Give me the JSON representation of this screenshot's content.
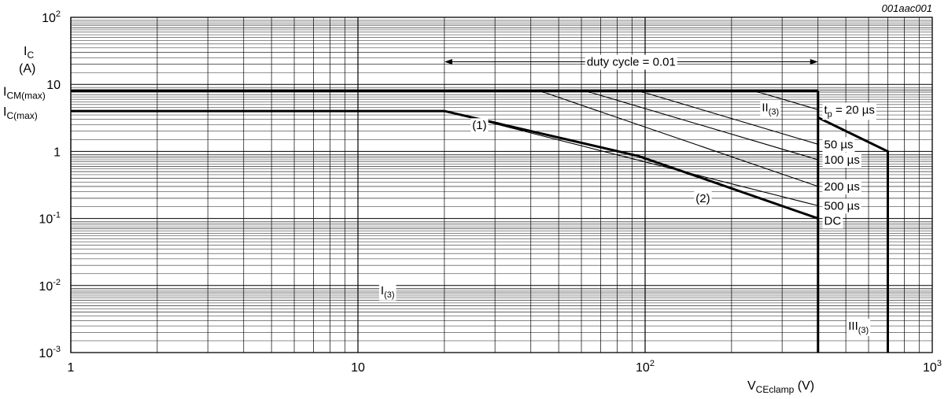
{
  "chart_data": {
    "type": "line",
    "figure_id": "001aac001",
    "x_scale": "log",
    "y_scale": "log",
    "xlim": [
      1,
      1000
    ],
    "ylim": [
      0.001,
      100
    ],
    "grid": true,
    "x_label": {
      "main": "V",
      "sub": "CEclamp",
      "unit": " (V)"
    },
    "y_label": {
      "main": "I",
      "sub": "C",
      "unit": "(A)"
    },
    "x_ticks": [
      {
        "value": 1,
        "base": "1",
        "exp": ""
      },
      {
        "value": 10,
        "base": "10",
        "exp": ""
      },
      {
        "value": 100,
        "base": "10",
        "exp": "2"
      },
      {
        "value": 1000,
        "base": "10",
        "exp": "3"
      }
    ],
    "y_ticks": [
      {
        "value": 100,
        "base": "10",
        "exp": "2"
      },
      {
        "value": 10,
        "base": "10",
        "exp": ""
      },
      {
        "value": 1,
        "base": "1",
        "exp": ""
      },
      {
        "value": 0.1,
        "base": "10",
        "exp": "-1"
      },
      {
        "value": 0.01,
        "base": "10",
        "exp": "-2"
      },
      {
        "value": 0.001,
        "base": "10",
        "exp": "-3"
      }
    ],
    "level_labels": [
      {
        "value": 8.0,
        "main": "I",
        "sub": "CM(max)"
      },
      {
        "value": 4.0,
        "main": "I",
        "sub": "C(max)"
      }
    ],
    "series": [
      {
        "kind": "boundary",
        "points": [
          [
            1,
            8.0
          ],
          [
            400,
            8.0
          ]
        ]
      },
      {
        "kind": "boundary",
        "points": [
          [
            1,
            4.0
          ],
          [
            20,
            4.0
          ],
          [
            95,
            0.85
          ],
          [
            400,
            0.1
          ]
        ]
      },
      {
        "kind": "boundary",
        "points": [
          [
            400,
            8.0
          ],
          [
            400,
            0.001
          ]
        ]
      },
      {
        "kind": "boundary",
        "points": [
          [
            400,
            3.2
          ],
          [
            700,
            1.0
          ],
          [
            700,
            0.001
          ]
        ]
      },
      {
        "kind": "pulse",
        "points": [
          [
            240,
            8.0
          ],
          [
            400,
            4.2
          ]
        ]
      },
      {
        "kind": "pulse",
        "points": [
          [
            95,
            8.0
          ],
          [
            400,
            1.28
          ]
        ]
      },
      {
        "kind": "pulse",
        "points": [
          [
            62,
            8.0
          ],
          [
            400,
            0.75
          ]
        ]
      },
      {
        "kind": "pulse",
        "points": [
          [
            43,
            8.0
          ],
          [
            400,
            0.3
          ]
        ]
      },
      {
        "kind": "pulse",
        "points": [
          [
            20,
            4.0
          ],
          [
            400,
            0.155
          ]
        ]
      }
    ],
    "pulse_labels": [
      {
        "x": 420,
        "y": 4.2,
        "main": "t",
        "sub": "p",
        "rest": " = 20 µs"
      },
      {
        "x": 420,
        "y": 1.28,
        "main": "50 µs",
        "sub": "",
        "rest": ""
      },
      {
        "x": 420,
        "y": 0.75,
        "main": "100 µs",
        "sub": "",
        "rest": ""
      },
      {
        "x": 420,
        "y": 0.3,
        "main": "200 µs",
        "sub": "",
        "rest": ""
      },
      {
        "x": 420,
        "y": 0.155,
        "main": "500 µs",
        "sub": "",
        "rest": ""
      },
      {
        "x": 420,
        "y": 0.092,
        "main": "DC",
        "sub": "",
        "rest": ""
      }
    ],
    "annotations": [
      {
        "x": 25,
        "y": 2.45,
        "main": "(1)",
        "sub": ""
      },
      {
        "x": 150,
        "y": 0.2,
        "main": "(2)",
        "sub": ""
      },
      {
        "x": 12,
        "y": 0.0085,
        "main": "I",
        "sub": "(3)"
      },
      {
        "x": 255,
        "y": 4.5,
        "main": "II",
        "sub": "(3)"
      },
      {
        "x": 510,
        "y": 0.0025,
        "main": "III",
        "sub": "(3)"
      }
    ],
    "duty_cycle": {
      "text": "duty cycle = 0.01",
      "x_from": 20,
      "x_to": 400,
      "y": 20
    }
  }
}
